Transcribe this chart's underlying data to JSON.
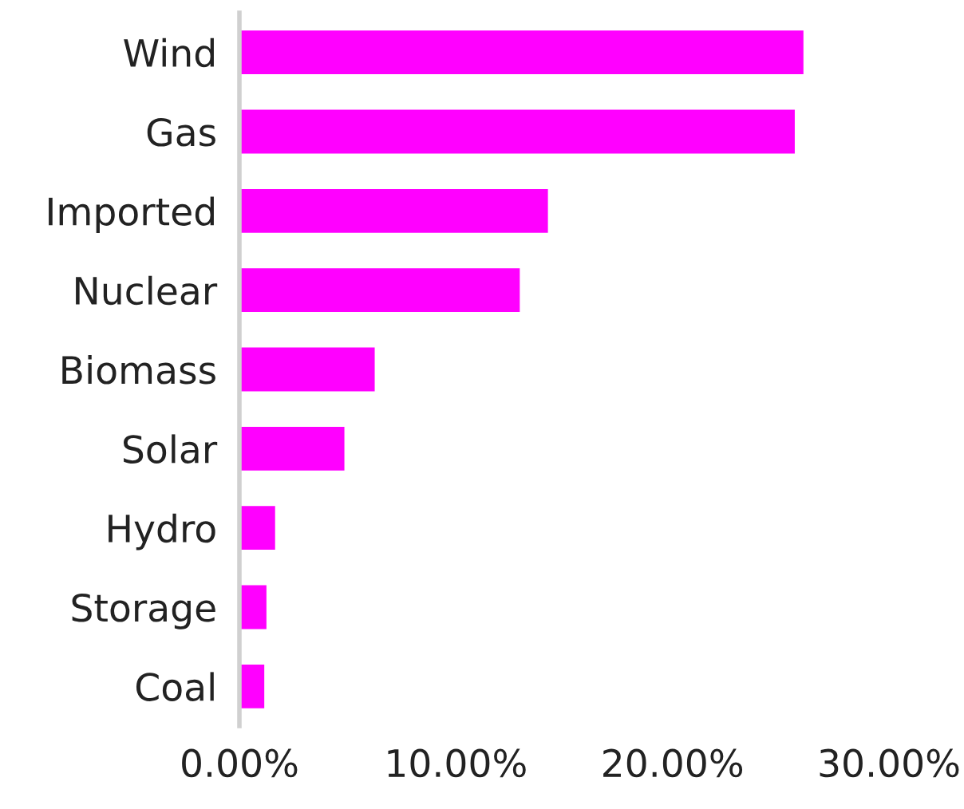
{
  "chart_data": {
    "type": "bar",
    "orientation": "horizontal",
    "categories": [
      "Wind",
      "Gas",
      "Imported",
      "Nuclear",
      "Biomass",
      "Solar",
      "Hydro",
      "Storage",
      "Coal"
    ],
    "values": [
      26.1,
      25.7,
      14.3,
      13.0,
      6.3,
      4.9,
      1.7,
      1.3,
      1.2
    ],
    "color": "#ff00ff",
    "xlim": [
      0,
      30
    ],
    "xticks": [
      {
        "value": 0,
        "label": "0.00%"
      },
      {
        "value": 10,
        "label": "10.00%"
      },
      {
        "value": 20,
        "label": "20.00%"
      },
      {
        "value": 30,
        "label": "30.00%"
      }
    ],
    "grid": false,
    "legend": false
  }
}
